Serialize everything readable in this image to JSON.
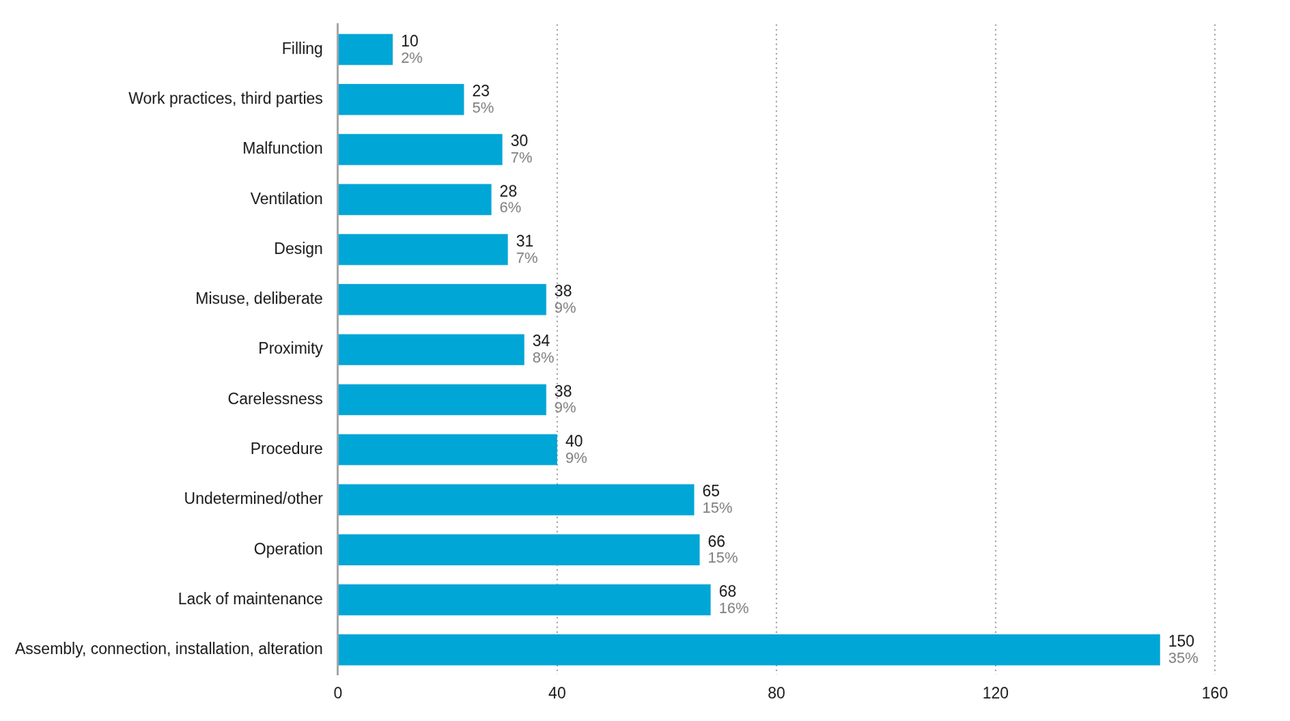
{
  "chart_data": {
    "type": "bar",
    "orientation": "horizontal",
    "categories": [
      "Filling",
      "Work practices, third parties",
      "Malfunction",
      "Ventilation",
      "Design",
      "Misuse, deliberate",
      "Proximity",
      "Carelessness",
      "Procedure",
      "Undetermined/other",
      "Operation",
      "Lack of maintenance",
      "Assembly, connection, installation, alteration"
    ],
    "values": [
      10,
      23,
      30,
      28,
      31,
      38,
      34,
      38,
      40,
      65,
      66,
      68,
      150
    ],
    "percent_labels": [
      "2%",
      "5%",
      "7%",
      "6%",
      "7%",
      "9%",
      "8%",
      "9%",
      "9%",
      "15%",
      "15%",
      "16%",
      "35%"
    ],
    "color": "#00a6d6",
    "data_labels": true,
    "xlim": [
      0,
      160
    ],
    "xticks": [
      0,
      40,
      80,
      120,
      160
    ],
    "grid": true
  }
}
